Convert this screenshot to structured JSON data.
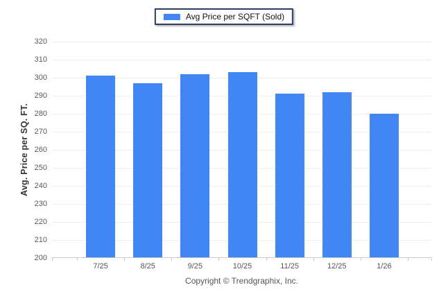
{
  "legend": {
    "label": "Avg Price per SQFT (Sold)",
    "swatch_color": "#4285f4",
    "border_color": "#2b3d66"
  },
  "footer": {
    "copyright": "Copyright © Trendgraphix, Inc."
  },
  "chart_data": {
    "type": "bar",
    "title": "",
    "categories": [
      "7/25",
      "8/25",
      "9/25",
      "10/25",
      "11/25",
      "12/25",
      "1/26"
    ],
    "series": [
      {
        "name": "Avg Price per SQFT (Sold)",
        "values": [
          301,
          297,
          302,
          303,
          291,
          292,
          280
        ]
      }
    ],
    "xlabel": "",
    "ylabel": "Avg. Price per SQ. FT.",
    "ylim": [
      200,
      320
    ],
    "ytick_step": 10,
    "grid": "horizontal",
    "legend_position": "top-center",
    "bar_color": "#4285f4",
    "gridline_color": "#ededed",
    "axis_line_color": "#c9c9c9"
  }
}
